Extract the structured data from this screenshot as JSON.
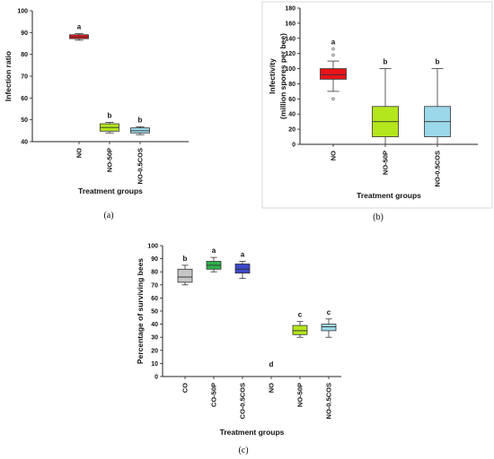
{
  "chart_data": [
    {
      "type": "box",
      "panel_label": "(a)",
      "ylabel": "Infection ratio",
      "xlabel": "Treatment groups",
      "ylim": [
        40,
        100
      ],
      "yticks": [
        40,
        50,
        60,
        70,
        80,
        90,
        100
      ],
      "categories": [
        "NO",
        "NO-50P",
        "NO-0.5COS"
      ],
      "boxes": [
        {
          "name": "NO",
          "min": 86.5,
          "q1": 87.2,
          "median": 88.0,
          "q3": 89.0,
          "max": 89.5,
          "outliers": [],
          "color": "#e8141b",
          "letter": "a"
        },
        {
          "name": "NO-50P",
          "min": 44.0,
          "q1": 44.8,
          "median": 46.5,
          "q3": 48.2,
          "max": 48.8,
          "outliers": [],
          "color": "#b5e61d",
          "letter": "b"
        },
        {
          "name": "NO-0.5COS",
          "min": 43.2,
          "q1": 44.0,
          "median": 45.0,
          "q3": 46.3,
          "max": 46.8,
          "outliers": [],
          "color": "#9bd8ea",
          "letter": "b"
        }
      ]
    },
    {
      "type": "box",
      "panel_label": "(b)",
      "ylabel": "Infectivity",
      "ylabel_sub": "(million spores per bee)",
      "xlabel": "Treatment groups",
      "ylim": [
        0,
        180
      ],
      "yticks": [
        0,
        20,
        40,
        60,
        80,
        100,
        120,
        140,
        160,
        180
      ],
      "categories": [
        "NO",
        "NO-50P",
        "NO-0.5COS"
      ],
      "boxes": [
        {
          "name": "NO",
          "min": 70,
          "q1": 86,
          "median": 92,
          "q3": 100,
          "max": 110,
          "outliers": [
            60,
            118,
            126
          ],
          "color": "#e8141b",
          "letter": "a"
        },
        {
          "name": "NO-50P",
          "min": 0,
          "q1": 10,
          "median": 30,
          "q3": 50,
          "max": 100,
          "outliers": [],
          "color": "#b5e61d",
          "letter": "b"
        },
        {
          "name": "NO-0.5COS",
          "min": 0,
          "q1": 10,
          "median": 30,
          "q3": 50,
          "max": 100,
          "outliers": [],
          "color": "#9bd8ea",
          "letter": "b"
        }
      ]
    },
    {
      "type": "box",
      "panel_label": "(c)",
      "ylabel": "Percentage of surviving bees",
      "xlabel": "Treatment groups",
      "ylim": [
        0,
        100
      ],
      "yticks": [
        0,
        10,
        20,
        30,
        40,
        50,
        60,
        70,
        80,
        90,
        100
      ],
      "categories": [
        "CO",
        "CO-50P",
        "CO-0.5COS",
        "NO",
        "NO-50P",
        "NO-0.5COS"
      ],
      "boxes": [
        {
          "name": "CO",
          "min": 70,
          "q1": 72,
          "median": 76,
          "q3": 82,
          "max": 85,
          "outliers": [],
          "color": "#c6c6c6",
          "letter": "b"
        },
        {
          "name": "CO-50P",
          "min": 80,
          "q1": 82,
          "median": 85,
          "q3": 88,
          "max": 91,
          "outliers": [],
          "color": "#2eb14b",
          "letter": "a"
        },
        {
          "name": "CO-0.5COS",
          "min": 75,
          "q1": 79,
          "median": 82,
          "q3": 86,
          "max": 88,
          "outliers": [],
          "color": "#3e48c8",
          "letter": "a"
        },
        {
          "name": "NO",
          "min": null,
          "q1": null,
          "median": null,
          "q3": null,
          "max": null,
          "outliers": [],
          "color": "#ffffff",
          "letter": "d",
          "letter_value": 4
        },
        {
          "name": "NO-50P",
          "min": 30,
          "q1": 32,
          "median": 35,
          "q3": 39,
          "max": 42,
          "outliers": [],
          "color": "#b5e61d",
          "letter": "c"
        },
        {
          "name": "NO-0.5COS",
          "min": 30,
          "q1": 35,
          "median": 38,
          "q3": 40,
          "max": 44,
          "outliers": [],
          "color": "#9bd8ea",
          "letter": "c"
        }
      ]
    }
  ]
}
